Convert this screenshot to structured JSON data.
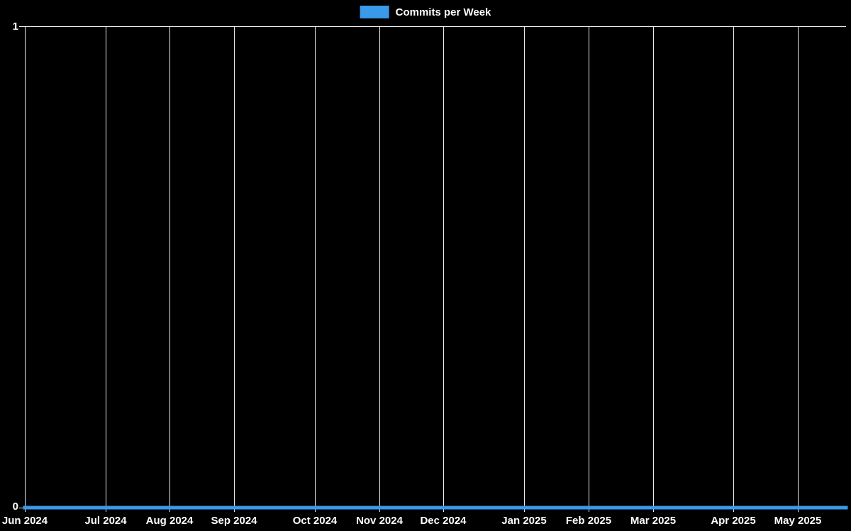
{
  "chart_data": {
    "type": "line",
    "title": "Commits per Week",
    "legend": [
      "Commits per Week"
    ],
    "legend_position": "top-center",
    "background_color": "#000000",
    "grid": true,
    "grid_color": "#ffffff",
    "text_color": "#ffffff",
    "ylabel": "",
    "xlabel": "",
    "ylim": [
      0,
      1
    ],
    "ytick_labels": [
      "1",
      "0"
    ],
    "x_unit": "weeks",
    "total_weeks": 51,
    "xticks": [
      {
        "label": "Jun 2024",
        "week": 0
      },
      {
        "label": "Jul 2024",
        "week": 5
      },
      {
        "label": "Aug 2024",
        "week": 9
      },
      {
        "label": "Sep 2024",
        "week": 13
      },
      {
        "label": "Oct 2024",
        "week": 18
      },
      {
        "label": "Nov 2024",
        "week": 22
      },
      {
        "label": "Dec 2024",
        "week": 26
      },
      {
        "label": "Jan 2025",
        "week": 31
      },
      {
        "label": "Feb 2025",
        "week": 35
      },
      {
        "label": "Mar 2025",
        "week": 39
      },
      {
        "label": "Apr 2025",
        "week": 44
      },
      {
        "label": "May 2025",
        "week": 48
      }
    ],
    "series": [
      {
        "name": "Commits per Week",
        "color": "#3a99e8",
        "line_width": 5,
        "values": [
          0,
          0,
          0,
          0,
          0,
          0,
          0,
          0,
          0,
          0,
          0,
          0,
          0,
          0,
          0,
          0,
          0,
          0,
          0,
          0,
          0,
          0,
          0,
          0,
          0,
          0,
          0,
          0,
          0,
          0,
          0,
          0,
          0,
          0,
          0,
          0,
          0,
          0,
          0,
          0,
          0,
          0,
          0,
          0,
          0,
          0,
          0,
          0,
          0,
          0,
          0,
          0
        ]
      }
    ]
  }
}
